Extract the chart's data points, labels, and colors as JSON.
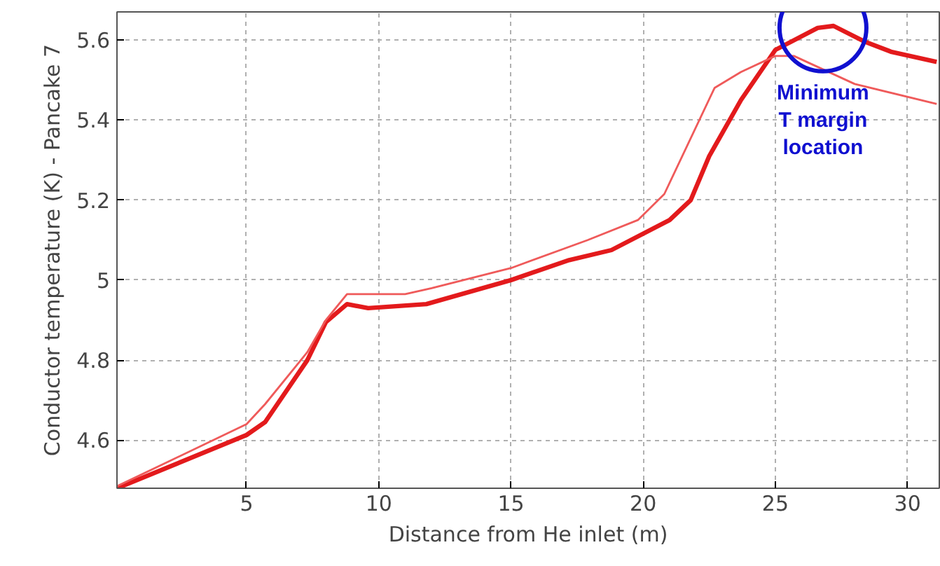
{
  "chart_data": {
    "type": "line",
    "xlabel": "Distance from He inlet (m)",
    "ylabel": "Conductor temperature (K) - Pancake 7",
    "xlim": [
      0.1,
      31.2
    ],
    "ylim": [
      4.48,
      5.67
    ],
    "xticks": [
      5,
      10,
      15,
      20,
      25,
      30
    ],
    "yticks": [
      4.6,
      4.8,
      {
        "value": 5.0,
        "label": "5"
      },
      5.2,
      5.4,
      5.6
    ],
    "grid": true,
    "series": [
      {
        "color": "#e31a1c",
        "x": [
          0.1,
          5,
          5.7,
          7.3,
          8,
          8.8,
          9.6,
          11.8,
          15,
          17.2,
          18.8,
          21,
          21.8,
          22.5,
          23.7,
          25,
          26.6,
          27.2,
          28.4,
          29.4,
          31.1
        ],
        "values": [
          4.48,
          4.613,
          4.645,
          4.8,
          4.895,
          4.94,
          4.93,
          4.94,
          5.0,
          5.05,
          5.075,
          5.15,
          5.2,
          5.31,
          5.45,
          5.575,
          5.63,
          5.635,
          5.595,
          5.57,
          5.545
        ]
      },
      {
        "color": "#ef5a5a",
        "x": [
          0.1,
          5,
          5.7,
          7.3,
          8,
          8.8,
          11,
          12,
          15,
          17.9,
          19.8,
          20.8,
          22.7,
          23.7,
          25,
          25.7,
          28,
          31.1
        ],
        "values": [
          4.485,
          4.64,
          4.69,
          4.82,
          4.9,
          4.965,
          4.965,
          4.98,
          5.03,
          5.1,
          5.15,
          5.215,
          5.48,
          5.52,
          5.56,
          5.56,
          5.49,
          5.44
        ]
      }
    ],
    "annotations": [
      {
        "text": "Minimum\nT margin\nlocation",
        "x": 26.8,
        "y": 5.63
      }
    ]
  }
}
